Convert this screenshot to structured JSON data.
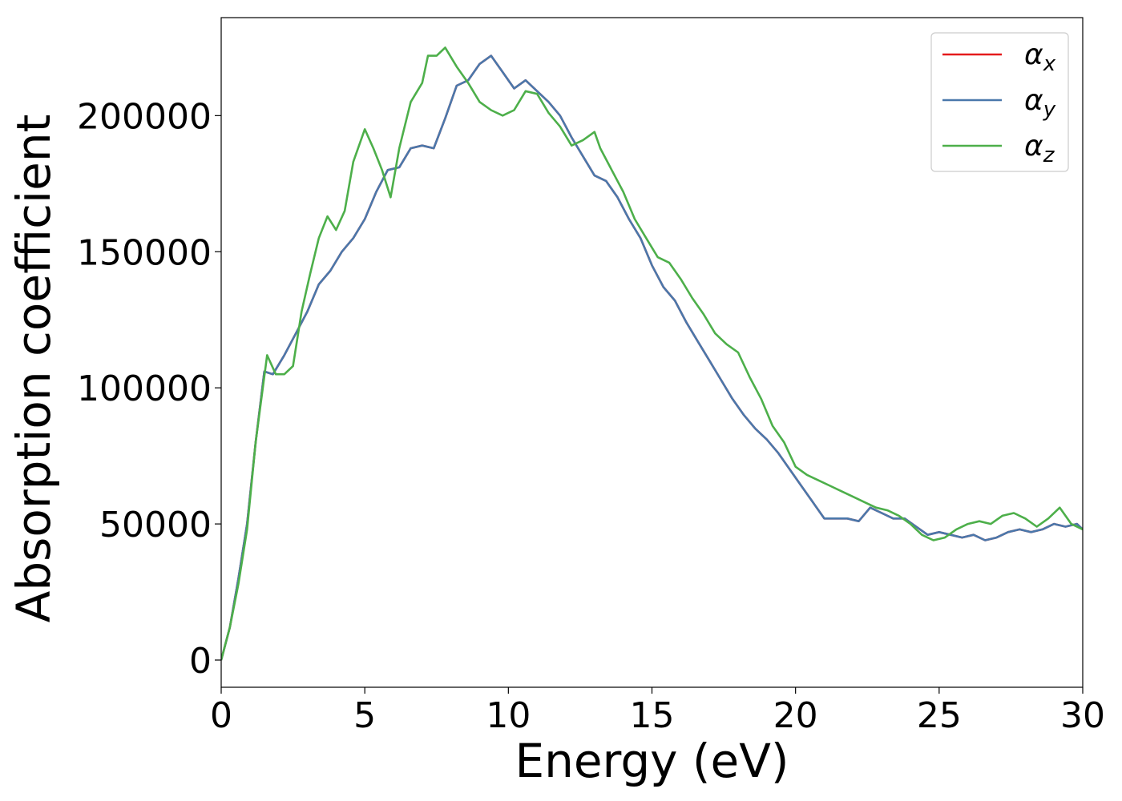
{
  "chart_data": {
    "type": "line",
    "xlabel": "Energy (eV)",
    "ylabel": "Absorption coefficient",
    "xlim": [
      0,
      30
    ],
    "ylim": [
      -10000,
      236000
    ],
    "xticks": [
      0,
      5,
      10,
      15,
      20,
      25,
      30
    ],
    "yticks": [
      0,
      50000,
      100000,
      150000,
      200000
    ],
    "grid": false,
    "legend_position": "top-right",
    "series": [
      {
        "name": "αx",
        "legend_symbol": "α",
        "legend_sub": "x",
        "color": "#e41a1c",
        "x": [
          0,
          0.3,
          0.6,
          0.9,
          1.2,
          1.5,
          1.8,
          2.2,
          2.6,
          3.0,
          3.4,
          3.8,
          4.2,
          4.6,
          5.0,
          5.4,
          5.8,
          6.2,
          6.6,
          7.0,
          7.4,
          7.8,
          8.2,
          8.6,
          9.0,
          9.4,
          9.8,
          10.2,
          10.6,
          11.0,
          11.4,
          11.8,
          12.2,
          12.6,
          13.0,
          13.4,
          13.8,
          14.2,
          14.6,
          15.0,
          15.4,
          15.8,
          16.2,
          16.6,
          17.0,
          17.4,
          17.8,
          18.2,
          18.6,
          19.0,
          19.4,
          19.8,
          20.2,
          20.6,
          21.0,
          21.4,
          21.8,
          22.2,
          22.6,
          23.0,
          23.4,
          23.8,
          24.2,
          24.6,
          25.0,
          25.4,
          25.8,
          26.2,
          26.6,
          27.0,
          27.4,
          27.8,
          28.2,
          28.6,
          29.0,
          29.4,
          29.8,
          30.0
        ],
        "y": [
          0,
          12000,
          30000,
          50000,
          80000,
          106000,
          105000,
          112000,
          120000,
          128000,
          138000,
          143000,
          150000,
          155000,
          162000,
          172000,
          180000,
          181000,
          188000,
          189000,
          188000,
          199000,
          211000,
          213000,
          219000,
          222000,
          216000,
          210000,
          213000,
          209000,
          205000,
          200000,
          192000,
          185000,
          178000,
          176000,
          170000,
          162000,
          155000,
          145000,
          137000,
          132000,
          124000,
          117000,
          110000,
          103000,
          96000,
          90000,
          85000,
          81000,
          76000,
          70000,
          64000,
          58000,
          52000,
          52000,
          52000,
          51000,
          56000,
          54000,
          52000,
          52000,
          49000,
          46000,
          47000,
          46000,
          45000,
          46000,
          44000,
          45000,
          47000,
          48000,
          47000,
          48000,
          50000,
          49000,
          50000,
          48000
        ]
      },
      {
        "name": "αy",
        "legend_symbol": "α",
        "legend_sub": "y",
        "color": "#4a78ab",
        "x": [
          0,
          0.3,
          0.6,
          0.9,
          1.2,
          1.5,
          1.8,
          2.2,
          2.6,
          3.0,
          3.4,
          3.8,
          4.2,
          4.6,
          5.0,
          5.4,
          5.8,
          6.2,
          6.6,
          7.0,
          7.4,
          7.8,
          8.2,
          8.6,
          9.0,
          9.4,
          9.8,
          10.2,
          10.6,
          11.0,
          11.4,
          11.8,
          12.2,
          12.6,
          13.0,
          13.4,
          13.8,
          14.2,
          14.6,
          15.0,
          15.4,
          15.8,
          16.2,
          16.6,
          17.0,
          17.4,
          17.8,
          18.2,
          18.6,
          19.0,
          19.4,
          19.8,
          20.2,
          20.6,
          21.0,
          21.4,
          21.8,
          22.2,
          22.6,
          23.0,
          23.4,
          23.8,
          24.2,
          24.6,
          25.0,
          25.4,
          25.8,
          26.2,
          26.6,
          27.0,
          27.4,
          27.8,
          28.2,
          28.6,
          29.0,
          29.4,
          29.8,
          30.0
        ],
        "y": [
          0,
          12000,
          30000,
          50000,
          80000,
          106000,
          105000,
          112000,
          120000,
          128000,
          138000,
          143000,
          150000,
          155000,
          162000,
          172000,
          180000,
          181000,
          188000,
          189000,
          188000,
          199000,
          211000,
          213000,
          219000,
          222000,
          216000,
          210000,
          213000,
          209000,
          205000,
          200000,
          192000,
          185000,
          178000,
          176000,
          170000,
          162000,
          155000,
          145000,
          137000,
          132000,
          124000,
          117000,
          110000,
          103000,
          96000,
          90000,
          85000,
          81000,
          76000,
          70000,
          64000,
          58000,
          52000,
          52000,
          52000,
          51000,
          56000,
          54000,
          52000,
          52000,
          49000,
          46000,
          47000,
          46000,
          45000,
          46000,
          44000,
          45000,
          47000,
          48000,
          47000,
          48000,
          50000,
          49000,
          50000,
          48000
        ]
      },
      {
        "name": "αz",
        "legend_symbol": "α",
        "legend_sub": "z",
        "color": "#4daf4a",
        "x": [
          0,
          0.3,
          0.6,
          0.9,
          1.2,
          1.6,
          1.9,
          2.2,
          2.5,
          2.8,
          3.1,
          3.4,
          3.7,
          4.0,
          4.3,
          4.6,
          5.0,
          5.3,
          5.6,
          5.9,
          6.2,
          6.6,
          7.0,
          7.2,
          7.5,
          7.8,
          8.2,
          8.6,
          9.0,
          9.4,
          9.8,
          10.2,
          10.6,
          11.0,
          11.4,
          11.8,
          12.2,
          12.6,
          13.0,
          13.2,
          13.6,
          14.0,
          14.4,
          14.8,
          15.2,
          15.6,
          16.0,
          16.4,
          16.8,
          17.2,
          17.6,
          18.0,
          18.4,
          18.8,
          19.2,
          19.6,
          20.0,
          20.4,
          20.8,
          21.2,
          21.6,
          22.0,
          22.4,
          22.8,
          23.2,
          23.6,
          24.0,
          24.4,
          24.8,
          25.2,
          25.6,
          26.0,
          26.4,
          26.8,
          27.2,
          27.6,
          28.0,
          28.4,
          28.8,
          29.2,
          29.6,
          30.0
        ],
        "y": [
          0,
          12000,
          28000,
          48000,
          80000,
          112000,
          105000,
          105000,
          108000,
          128000,
          142000,
          155000,
          163000,
          158000,
          165000,
          183000,
          195000,
          188000,
          180000,
          170000,
          188000,
          205000,
          212000,
          222000,
          222000,
          225000,
          218000,
          212000,
          205000,
          202000,
          200000,
          202000,
          209000,
          208000,
          201000,
          196000,
          189000,
          191000,
          194000,
          188000,
          180000,
          172000,
          162000,
          155000,
          148000,
          146000,
          140000,
          133000,
          127000,
          120000,
          116000,
          113000,
          104000,
          96000,
          86000,
          80000,
          71000,
          68000,
          66000,
          64000,
          62000,
          60000,
          58000,
          56000,
          55000,
          53000,
          50000,
          46000,
          44000,
          45000,
          48000,
          50000,
          51000,
          50000,
          53000,
          54000,
          52000,
          49000,
          52000,
          56000,
          50000,
          48000
        ]
      }
    ]
  }
}
